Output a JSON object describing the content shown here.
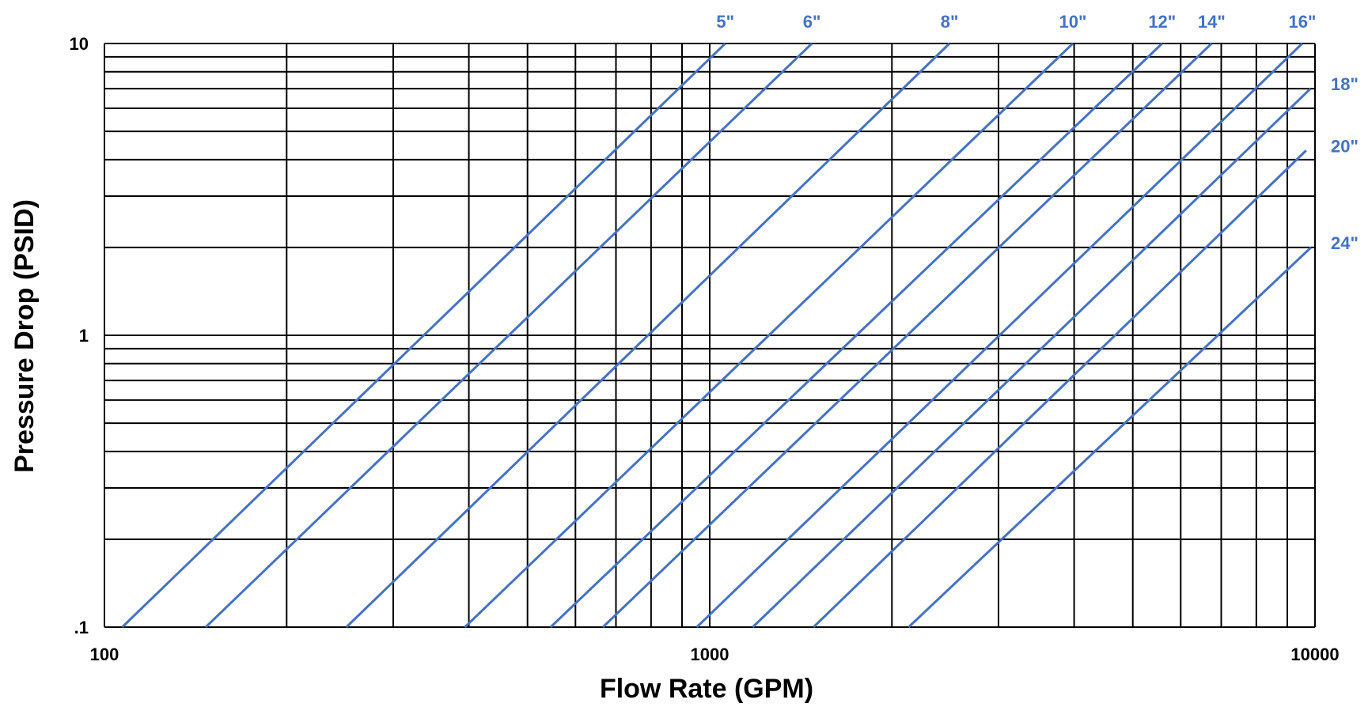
{
  "chart_data": {
    "type": "line",
    "xlabel": "Flow Rate (GPM)",
    "ylabel": "Pressure Drop (PSID)",
    "x_scale": "log",
    "y_scale": "log",
    "xlim": [
      100,
      10000
    ],
    "ylim": [
      0.1,
      10
    ],
    "grid": true,
    "x_ticks": [
      {
        "value": 100,
        "label": "100"
      },
      {
        "value": 1000,
        "label": "1000"
      },
      {
        "value": 10000,
        "label": "10000"
      }
    ],
    "y_ticks": [
      {
        "value": 0.1,
        "label": ".1"
      },
      {
        "value": 1,
        "label": "1"
      },
      {
        "value": 10,
        "label": "10"
      }
    ],
    "line_color": "#4472C4",
    "series": [
      {
        "name": "5\"",
        "x": [
          107,
          1061
        ],
        "y": [
          0.1,
          10
        ]
      },
      {
        "name": "6\"",
        "x": [
          147,
          1475
        ],
        "y": [
          0.1,
          10
        ]
      },
      {
        "name": "8\"",
        "x": [
          251,
          2490
        ],
        "y": [
          0.1,
          10
        ]
      },
      {
        "name": "10\"",
        "x": [
          394,
          3981
        ],
        "y": [
          0.1,
          10
        ]
      },
      {
        "name": "12\"",
        "x": [
          546,
          5590
        ],
        "y": [
          0.1,
          10
        ]
      },
      {
        "name": "14\"",
        "x": [
          666,
          6749
        ],
        "y": [
          0.1,
          10
        ]
      },
      {
        "name": "16\"",
        "x": [
          952,
          9528
        ],
        "y": [
          0.1,
          10
        ]
      },
      {
        "name": "18\"",
        "x": [
          1178,
          9830
        ],
        "y": [
          0.1,
          7
        ]
      },
      {
        "name": "20\"",
        "x": [
          1484,
          9670
        ],
        "y": [
          0.1,
          4.3
        ]
      },
      {
        "name": "24\"",
        "x": [
          2131,
          9848
        ],
        "y": [
          0.1,
          2.0
        ]
      }
    ]
  }
}
